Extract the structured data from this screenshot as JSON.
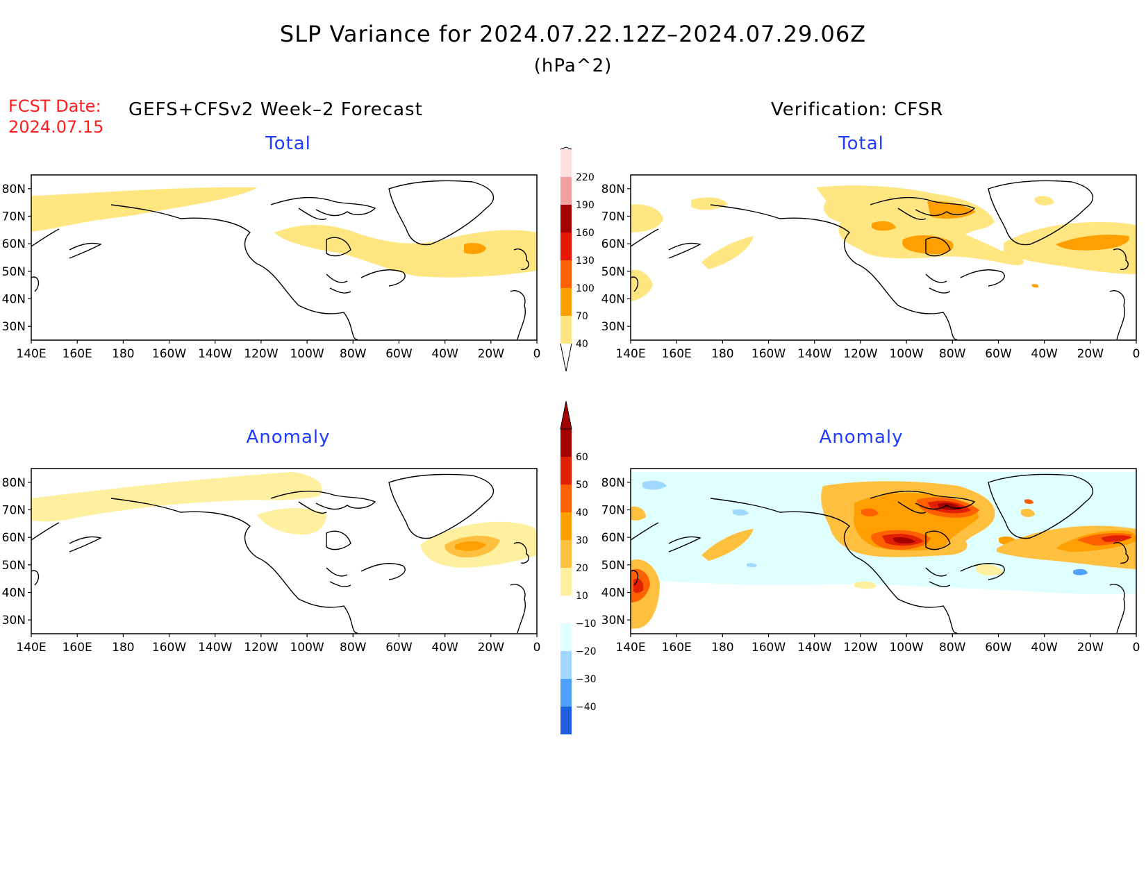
{
  "title": "SLP Variance for 2024.07.22.12Z–2024.07.29.06Z",
  "units": "(hPa^2)",
  "fcst_date": {
    "label": "FCST Date:",
    "value": "2024.07.15"
  },
  "forecast_header": "GEFS+CFSv2 Week–2 Forecast",
  "verification_header": "Verification: CFSR",
  "panels": {
    "fcst_total": {
      "title": "Total"
    },
    "verif_total": {
      "title": "Total"
    },
    "fcst_anom": {
      "title": "Anomaly"
    },
    "verif_anom": {
      "title": "Anomaly"
    }
  },
  "axes": {
    "lon_labels": [
      "140E",
      "160E",
      "180",
      "160W",
      "140W",
      "120W",
      "100W",
      "80W",
      "60W",
      "40W",
      "20W",
      "0"
    ],
    "lat_labels": [
      "80N",
      "70N",
      "60N",
      "50N",
      "40N",
      "30N"
    ],
    "lon_range": [
      140,
      360
    ],
    "lat_range": [
      25,
      85
    ]
  },
  "colorbar_total": {
    "levels": [
      "40",
      "70",
      "100",
      "130",
      "160",
      "190",
      "220"
    ],
    "colors": [
      "#ffe680",
      "#ffa000",
      "#ff6000",
      "#e81800",
      "#a50000",
      "#f0a0a0",
      "#ffe0e0"
    ]
  },
  "colorbar_anomaly": {
    "levels": [
      "60",
      "50",
      "40",
      "30",
      "20",
      "10",
      "−10",
      "−20",
      "−30",
      "−40"
    ],
    "colors": [
      "#a50000",
      "#e02000",
      "#ff6000",
      "#ffa000",
      "#ffc040",
      "#fff0a0",
      "#ffffff",
      "#e0ffff",
      "#a0d8ff",
      "#50a0ff",
      "#2060e0"
    ]
  }
}
